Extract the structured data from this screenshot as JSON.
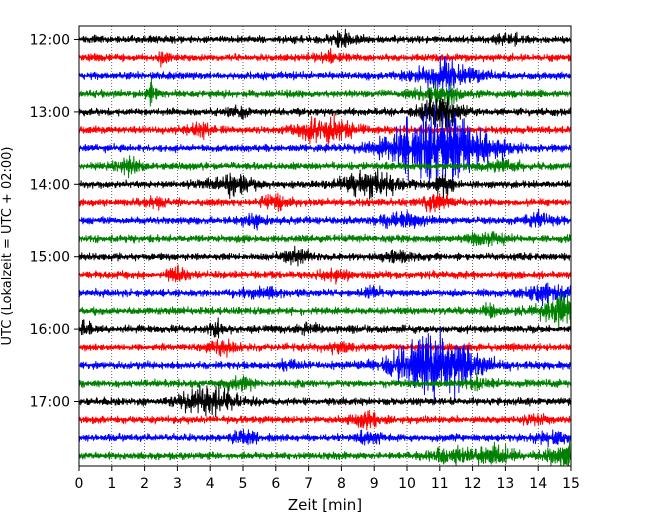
{
  "chart_data": {
    "type": "line",
    "title": "",
    "xlabel": "Zeit  [min]",
    "ylabel": "UTC (Lokalzeit = UTC + 02:00)",
    "xlim": [
      0,
      15
    ],
    "x_ticks": [
      0,
      1,
      2,
      3,
      4,
      5,
      6,
      7,
      8,
      9,
      10,
      11,
      12,
      13,
      14,
      15
    ],
    "y_tick_labels": [
      "12:00",
      "13:00",
      "14:00",
      "15:00",
      "16:00",
      "17:00"
    ],
    "grid": "vertical-dotted",
    "trace_interval_minutes": 15,
    "trace_color_cycle": [
      "#000000",
      "#ff0000",
      "#0000ff",
      "#008000"
    ],
    "series": [
      {
        "start": "12:00",
        "color": "#000000",
        "events": [
          {
            "t": 8.1,
            "amp": 0.35,
            "w": 0.3
          },
          {
            "t": 13.1,
            "amp": 0.25,
            "w": 0.3
          }
        ]
      },
      {
        "start": "12:15",
        "color": "#ff0000",
        "events": [
          {
            "t": 2.6,
            "amp": 0.4,
            "w": 0.15
          },
          {
            "t": 7.6,
            "amp": 0.25,
            "w": 0.3
          }
        ]
      },
      {
        "start": "12:30",
        "color": "#0000ff",
        "events": [
          {
            "t": 11.1,
            "amp": 0.8,
            "w": 0.6
          },
          {
            "t": 12.2,
            "amp": 0.2,
            "w": 0.3
          }
        ]
      },
      {
        "start": "12:45",
        "color": "#008000",
        "events": [
          {
            "t": 2.2,
            "amp": 0.6,
            "w": 0.1
          },
          {
            "t": 10.9,
            "amp": 0.5,
            "w": 0.5
          }
        ]
      },
      {
        "start": "13:00",
        "color": "#000000",
        "events": [
          {
            "t": 4.9,
            "amp": 0.3,
            "w": 0.2
          },
          {
            "t": 11.0,
            "amp": 1.2,
            "w": 0.4
          }
        ]
      },
      {
        "start": "13:15",
        "color": "#ff0000",
        "events": [
          {
            "t": 3.7,
            "amp": 0.35,
            "w": 0.3
          },
          {
            "t": 7.5,
            "amp": 0.75,
            "w": 0.6
          }
        ]
      },
      {
        "start": "13:30",
        "color": "#0000ff",
        "events": [
          {
            "t": 11.0,
            "amp": 2.4,
            "w": 1.0
          }
        ]
      },
      {
        "start": "13:45",
        "color": "#008000",
        "events": [
          {
            "t": 1.5,
            "amp": 0.45,
            "w": 0.25
          },
          {
            "t": 12.9,
            "amp": 0.25,
            "w": 0.4
          }
        ]
      },
      {
        "start": "14:00",
        "color": "#000000",
        "events": [
          {
            "t": 4.7,
            "amp": 0.55,
            "w": 0.5
          },
          {
            "t": 8.9,
            "amp": 0.7,
            "w": 0.6
          },
          {
            "t": 11.1,
            "amp": 0.6,
            "w": 0.2
          }
        ]
      },
      {
        "start": "14:15",
        "color": "#ff0000",
        "events": [
          {
            "t": 2.3,
            "amp": 0.3,
            "w": 0.2
          },
          {
            "t": 6.0,
            "amp": 0.35,
            "w": 0.3
          },
          {
            "t": 10.9,
            "amp": 0.45,
            "w": 0.3
          }
        ]
      },
      {
        "start": "14:30",
        "color": "#0000ff",
        "events": [
          {
            "t": 5.4,
            "amp": 0.35,
            "w": 0.3
          },
          {
            "t": 9.9,
            "amp": 0.35,
            "w": 0.5
          },
          {
            "t": 14.0,
            "amp": 0.35,
            "w": 0.3
          }
        ]
      },
      {
        "start": "14:45",
        "color": "#008000",
        "events": [
          {
            "t": 12.4,
            "amp": 0.35,
            "w": 0.4
          }
        ]
      },
      {
        "start": "15:00",
        "color": "#000000",
        "events": [
          {
            "t": 6.6,
            "amp": 0.35,
            "w": 0.3
          },
          {
            "t": 9.7,
            "amp": 0.2,
            "w": 0.3
          }
        ]
      },
      {
        "start": "15:15",
        "color": "#ff0000",
        "events": [
          {
            "t": 3.0,
            "amp": 0.35,
            "w": 0.2
          },
          {
            "t": 7.8,
            "amp": 0.3,
            "w": 0.3
          }
        ]
      },
      {
        "start": "15:30",
        "color": "#0000ff",
        "events": [
          {
            "t": 5.5,
            "amp": 0.25,
            "w": 0.4
          },
          {
            "t": 8.9,
            "amp": 0.3,
            "w": 0.2
          },
          {
            "t": 14.3,
            "amp": 0.55,
            "w": 0.5
          }
        ]
      },
      {
        "start": "15:45",
        "color": "#008000",
        "events": [
          {
            "t": 12.5,
            "amp": 0.3,
            "w": 0.2
          },
          {
            "t": 14.7,
            "amp": 0.9,
            "w": 0.5
          }
        ]
      },
      {
        "start": "16:00",
        "color": "#000000",
        "events": [
          {
            "t": 0.1,
            "amp": 0.45,
            "w": 0.2
          },
          {
            "t": 4.2,
            "amp": 0.4,
            "w": 0.2
          },
          {
            "t": 7.0,
            "amp": 0.3,
            "w": 0.2
          }
        ]
      },
      {
        "start": "16:15",
        "color": "#ff0000",
        "events": [
          {
            "t": 4.4,
            "amp": 0.35,
            "w": 0.3
          },
          {
            "t": 7.9,
            "amp": 0.25,
            "w": 0.3
          }
        ]
      },
      {
        "start": "16:30",
        "color": "#0000ff",
        "events": [
          {
            "t": 10.9,
            "amp": 2.0,
            "w": 0.9
          },
          {
            "t": 6.4,
            "amp": 0.35,
            "w": 0.15
          }
        ]
      },
      {
        "start": "16:45",
        "color": "#008000",
        "events": [
          {
            "t": 4.9,
            "amp": 0.35,
            "w": 0.3
          },
          {
            "t": 12.2,
            "amp": 0.35,
            "w": 0.3
          }
        ]
      },
      {
        "start": "17:00",
        "color": "#000000",
        "events": [
          {
            "t": 4.0,
            "amp": 0.8,
            "w": 0.6
          }
        ]
      },
      {
        "start": "17:15",
        "color": "#ff0000",
        "events": [
          {
            "t": 8.8,
            "amp": 0.4,
            "w": 0.3
          },
          {
            "t": 14.0,
            "amp": 0.2,
            "w": 0.3
          }
        ]
      },
      {
        "start": "17:30",
        "color": "#0000ff",
        "events": [
          {
            "t": 5.0,
            "amp": 0.35,
            "w": 0.3
          },
          {
            "t": 8.8,
            "amp": 0.35,
            "w": 0.3
          },
          {
            "t": 14.4,
            "amp": 0.3,
            "w": 0.3
          }
        ]
      },
      {
        "start": "17:45",
        "color": "#008000",
        "events": [
          {
            "t": 11.4,
            "amp": 0.4,
            "w": 0.6
          },
          {
            "t": 12.8,
            "amp": 0.5,
            "w": 0.4
          },
          {
            "t": 14.8,
            "amp": 0.7,
            "w": 0.4
          }
        ]
      }
    ]
  }
}
